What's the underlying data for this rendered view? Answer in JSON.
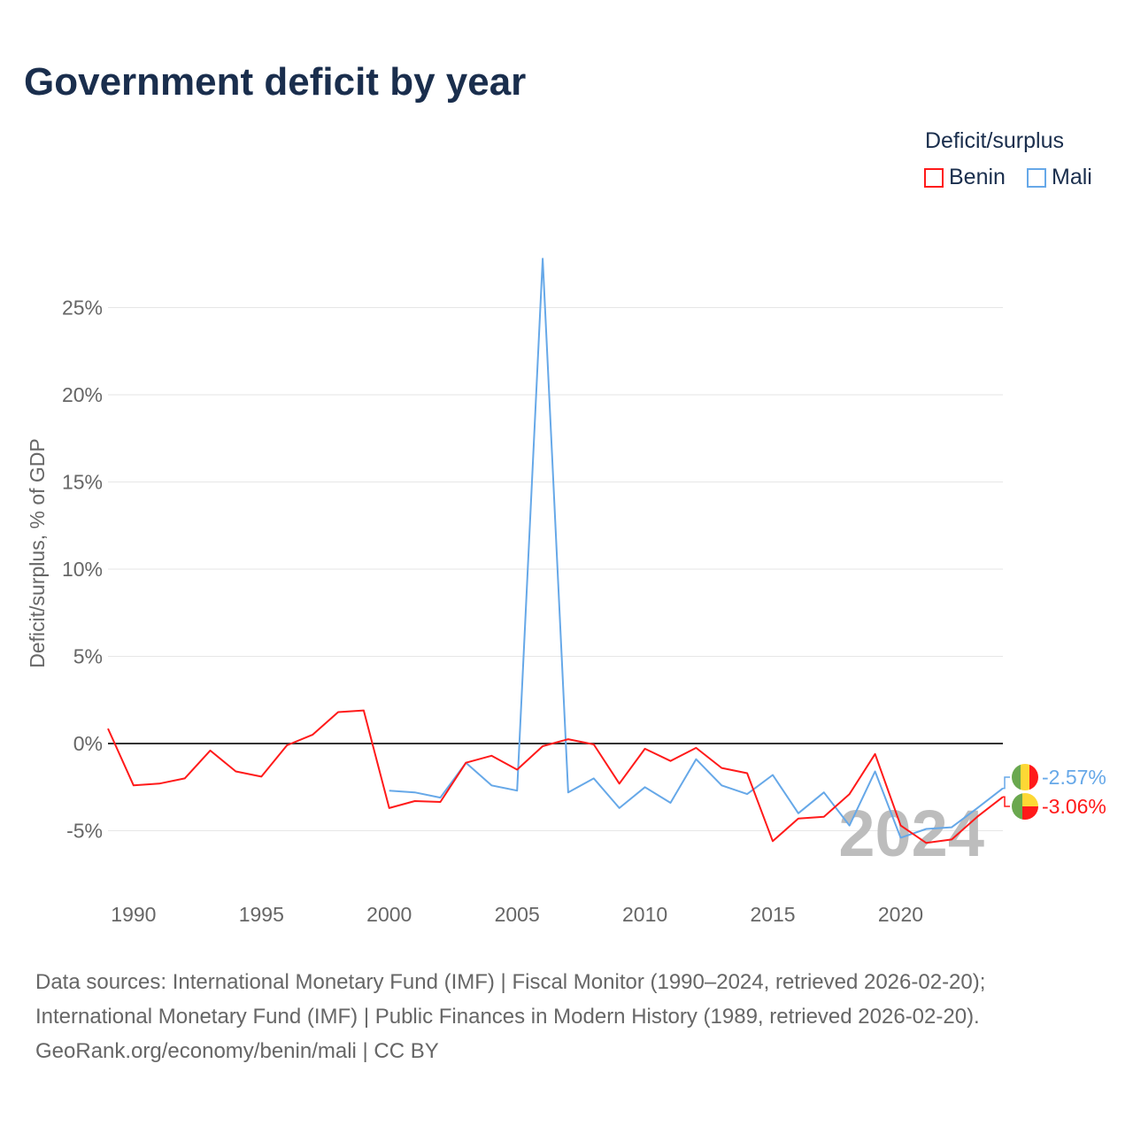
{
  "title": "Government deficit by year",
  "legend": {
    "title": "Deficit/surplus",
    "items": [
      {
        "name": "Benin",
        "color": "#ff1a1a"
      },
      {
        "name": "Mali",
        "color": "#66a8e8"
      }
    ]
  },
  "year_watermark": "2024",
  "footer": [
    "Data sources: International Monetary Fund (IMF) | Fiscal Monitor (1990–2024, retrieved 2026-02-20);",
    "International Monetary Fund (IMF) | Public Finances in Modern History (1989, retrieved 2026-02-20).",
    "GeoRank.org/economy/benin/mali | CC BY"
  ],
  "chart_data": {
    "type": "line",
    "title": "Government deficit by year",
    "xlabel": "",
    "ylabel": "Deficit/surplus, % of GDP",
    "xlim": [
      1989,
      2024
    ],
    "ylim": [
      -8.5,
      28
    ],
    "xticks": [
      1990,
      1995,
      2000,
      2005,
      2010,
      2015,
      2020
    ],
    "xtick_labels": [
      "1990",
      "1995",
      "2000",
      "2005",
      "2010",
      "2015",
      "2020"
    ],
    "yticks": [
      -5,
      0,
      5,
      10,
      15,
      20,
      25
    ],
    "ytick_labels": [
      "-5%",
      "0%",
      "5%",
      "10%",
      "15%",
      "20%",
      "25%"
    ],
    "grid": true,
    "legend_position": "top-right",
    "series": [
      {
        "name": "Benin",
        "color": "#ff1a1a",
        "end_label": "-3.06%",
        "x": [
          1989,
          1990,
          1991,
          1992,
          1993,
          1994,
          1995,
          1996,
          1997,
          1998,
          1999,
          2000,
          2001,
          2002,
          2003,
          2004,
          2005,
          2006,
          2007,
          2008,
          2009,
          2010,
          2011,
          2012,
          2013,
          2014,
          2015,
          2016,
          2017,
          2018,
          2019,
          2020,
          2021,
          2022,
          2023,
          2024
        ],
        "values": [
          0.86,
          -2.4,
          -2.3,
          -2.0,
          -0.4,
          -1.6,
          -1.9,
          -0.1,
          0.5,
          1.8,
          1.9,
          -3.7,
          -3.3,
          -3.35,
          -1.1,
          -0.7,
          -1.5,
          -0.15,
          0.25,
          -0.05,
          -2.3,
          -0.3,
          -1.0,
          -0.25,
          -1.4,
          -1.7,
          -5.6,
          -4.3,
          -4.2,
          -2.9,
          -0.6,
          -4.7,
          -5.7,
          -5.5,
          -4.2,
          -3.06
        ]
      },
      {
        "name": "Mali",
        "color": "#66a8e8",
        "end_label": "-2.57%",
        "x": [
          2000,
          2001,
          2002,
          2003,
          2004,
          2005,
          2006,
          2007,
          2008,
          2009,
          2010,
          2011,
          2012,
          2013,
          2014,
          2015,
          2016,
          2017,
          2018,
          2019,
          2020,
          2021,
          2022,
          2023,
          2024
        ],
        "values": [
          -2.7,
          -2.8,
          -3.1,
          -1.1,
          -2.4,
          -2.7,
          27.8,
          -2.8,
          -2.0,
          -3.7,
          -2.5,
          -3.4,
          -0.9,
          -2.4,
          -2.9,
          -1.8,
          -4.0,
          -2.8,
          -4.7,
          -1.6,
          -5.4,
          -4.9,
          -4.8,
          -3.7,
          -2.57
        ]
      }
    ]
  }
}
